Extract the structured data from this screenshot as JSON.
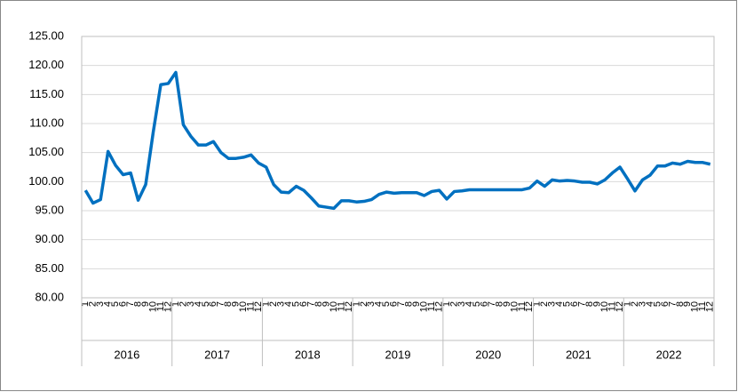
{
  "chart_data": {
    "type": "line",
    "categories": [
      "1",
      "2",
      "3",
      "4",
      "5",
      "6",
      "7",
      "8",
      "9",
      "10",
      "11",
      "12",
      "1",
      "2",
      "3",
      "4",
      "5",
      "6",
      "7",
      "8",
      "9",
      "10",
      "11",
      "12",
      "1",
      "2",
      "3",
      "4",
      "5",
      "6",
      "7",
      "8",
      "9",
      "10",
      "11",
      "12",
      "1",
      "2",
      "3",
      "4",
      "5",
      "6",
      "7",
      "8",
      "9",
      "10",
      "11",
      "12",
      "1",
      "2",
      "3",
      "4",
      "5",
      "6",
      "7",
      "8",
      "9",
      "10",
      "11",
      "12",
      "1",
      "2",
      "3",
      "4",
      "5",
      "6",
      "7",
      "8",
      "9",
      "10",
      "11",
      "12",
      "1",
      "2",
      "3",
      "4",
      "5",
      "6",
      "7",
      "8",
      "9",
      "10",
      "11",
      "12"
    ],
    "years": [
      "2016",
      "2017",
      "2018",
      "2019",
      "2020",
      "2021",
      "2022"
    ],
    "series": [
      {
        "color": "#0070c0",
        "values": [
          98.5,
          96.3,
          96.9,
          105.2,
          102.8,
          101.2,
          101.5,
          96.8,
          99.5,
          108.5,
          116.7,
          116.9,
          118.8,
          109.8,
          107.8,
          106.3,
          106.3,
          106.9,
          105.0,
          104.0,
          104.0,
          104.2,
          104.6,
          103.2,
          102.5,
          99.5,
          98.2,
          98.1,
          99.2,
          98.5,
          97.2,
          95.8,
          95.6,
          95.4,
          96.7,
          96.7,
          96.5,
          96.6,
          96.9,
          97.8,
          98.2,
          98.0,
          98.1,
          98.1,
          98.1,
          97.6,
          98.3,
          98.5,
          97.0,
          98.3,
          98.4,
          98.6,
          98.6,
          98.6,
          98.6,
          98.6,
          98.6,
          98.6,
          98.6,
          98.9,
          100.1,
          99.2,
          100.3,
          100.1,
          100.2,
          100.1,
          99.9,
          99.9,
          99.6,
          100.3,
          101.5,
          102.5,
          100.5,
          98.4,
          100.3,
          101.1,
          102.7,
          102.7,
          103.2,
          103.0,
          103.5,
          103.3,
          103.3,
          103.0
        ]
      }
    ],
    "ylim": [
      80,
      125
    ],
    "yticks": [
      {
        "value": 80,
        "label": "80.00"
      },
      {
        "value": 85,
        "label": "85.00"
      },
      {
        "value": 90,
        "label": "90.00"
      },
      {
        "value": 95,
        "label": "95.00"
      },
      {
        "value": 100,
        "label": "100.00"
      },
      {
        "value": 105,
        "label": "105.00"
      },
      {
        "value": 110,
        "label": "110.00"
      },
      {
        "value": 115,
        "label": "115.00"
      },
      {
        "value": 120,
        "label": "120.00"
      },
      {
        "value": 125,
        "label": "125.00"
      }
    ],
    "grid": true
  }
}
